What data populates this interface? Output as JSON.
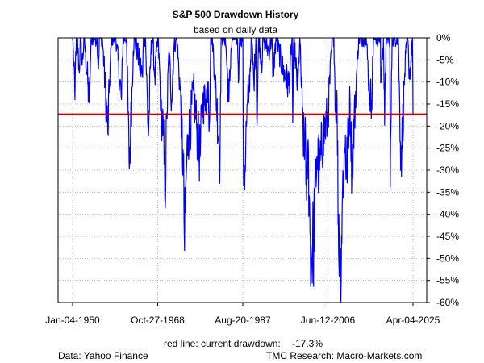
{
  "chart_data": {
    "type": "line",
    "title": "S&P 500 Drawdown History",
    "subtitle": "based on daily data",
    "xlabel": "",
    "ylabel": "",
    "x_ticks": [
      "Jan-04-1950",
      "Oct-27-1968",
      "Aug-20-1987",
      "Jun-12-2006",
      "Apr-04-2025"
    ],
    "y_ticks": [
      "0%",
      "-5%",
      "-10%",
      "-15%",
      "-20%",
      "-25%",
      "-30%",
      "-35%",
      "-40%",
      "-45%",
      "-50%",
      "-55%",
      "-60%"
    ],
    "xlim": [
      "Jan-04-1950",
      "Apr-04-2025"
    ],
    "ylim": [
      -60,
      0
    ],
    "y_scale": "linear",
    "grid": true,
    "series_color": "#0000ff",
    "reference_line": {
      "value": -17.3,
      "color": "#cc0000"
    },
    "series": [
      {
        "values": [
          [
            "1950-01-04",
            0
          ],
          [
            "1950-03-01",
            -3
          ],
          [
            "1950-07-13",
            -14
          ],
          [
            "1950-09-15",
            -3
          ],
          [
            "1951-01-15",
            0
          ],
          [
            "1951-06-29",
            -8
          ],
          [
            "1951-09-14",
            0
          ],
          [
            "1952-02-20",
            -6
          ],
          [
            "1952-08-01",
            0
          ],
          [
            "1953-09-14",
            -14.8
          ],
          [
            "1953-12-31",
            -4
          ],
          [
            "1954-03-01",
            0
          ],
          [
            "1955-06-01",
            0
          ],
          [
            "1955-09-26",
            -7
          ],
          [
            "1955-12-01",
            0
          ],
          [
            "1956-08-02",
            0
          ],
          [
            "1957-10-22",
            -21.6
          ],
          [
            "1958-03-01",
            -10
          ],
          [
            "1958-09-01",
            0
          ],
          [
            "1959-08-03",
            0
          ],
          [
            "1960-10-25",
            -14
          ],
          [
            "1961-03-01",
            0
          ],
          [
            "1961-12-12",
            0
          ],
          [
            "1962-06-26",
            -28
          ],
          [
            "1962-10-23",
            -22
          ],
          [
            "1963-06-01",
            -3
          ],
          [
            "1963-09-03",
            0
          ],
          [
            "1965-06-28",
            -9
          ],
          [
            "1965-09-01",
            0
          ],
          [
            "1966-02-09",
            0
          ],
          [
            "1966-10-07",
            -22.2
          ],
          [
            "1967-05-01",
            -3
          ],
          [
            "1967-09-25",
            0
          ],
          [
            "1968-03-05",
            -9
          ],
          [
            "1968-11-29",
            0
          ],
          [
            "1969-07-29",
            -16
          ],
          [
            "1970-01-30",
            -22
          ],
          [
            "1970-05-26",
            -36.1
          ],
          [
            "1970-11-02",
            -18
          ],
          [
            "1971-04-28",
            -3
          ],
          [
            "1971-11-23",
            -14
          ],
          [
            "1972-06-01",
            -2
          ],
          [
            "1973-01-11",
            0
          ],
          [
            "1973-10-26",
            -12
          ],
          [
            "1974-07-01",
            -30
          ],
          [
            "1974-10-03",
            -48.2
          ],
          [
            "1975-03-01",
            -30
          ],
          [
            "1975-07-15",
            -22
          ],
          [
            "1976-01-01",
            -20
          ],
          [
            "1976-09-21",
            -12
          ],
          [
            "1977-06-01",
            -20
          ],
          [
            "1978-03-06",
            -27
          ],
          [
            "1978-09-12",
            -15
          ],
          [
            "1979-06-01",
            -14
          ],
          [
            "1980-01-01",
            -10
          ],
          [
            "1980-03-27",
            -20
          ],
          [
            "1980-07-17",
            0
          ],
          [
            "1980-11-28",
            0
          ],
          [
            "1981-06-01",
            -8
          ],
          [
            "1982-08-12",
            -27.1
          ],
          [
            "1982-11-03",
            0
          ],
          [
            "1983-10-10",
            0
          ],
          [
            "1984-07-24",
            -14.4
          ],
          [
            "1985-01-01",
            -3
          ],
          [
            "1985-06-01",
            0
          ],
          [
            "1986-06-01",
            0
          ],
          [
            "1986-09-29",
            -9.4
          ],
          [
            "1986-12-01",
            0
          ],
          [
            "1987-08-25",
            0
          ],
          [
            "1987-10-19",
            -33.5
          ],
          [
            "1987-12-04",
            -33.5
          ],
          [
            "1988-06-01",
            -20
          ],
          [
            "1989-01-01",
            -12
          ],
          [
            "1989-07-26",
            0
          ],
          [
            "1990-01-30",
            -10.2
          ],
          [
            "1990-07-16",
            0
          ],
          [
            "1990-10-11",
            -19.9
          ],
          [
            "1991-02-13",
            0
          ],
          [
            "1991-12-01",
            -6
          ],
          [
            "1992-01-15",
            0
          ],
          [
            "1993-06-01",
            -3
          ],
          [
            "1994-02-02",
            0
          ],
          [
            "1994-04-04",
            -8.9
          ],
          [
            "1995-01-01",
            0
          ],
          [
            "1996-07-24",
            -7.6
          ],
          [
            "1997-10-27",
            -10.8
          ],
          [
            "1998-07-17",
            0
          ],
          [
            "1998-08-31",
            -19.3
          ],
          [
            "1998-11-23",
            0
          ],
          [
            "1999-10-15",
            -12
          ],
          [
            "2000-03-24",
            0
          ],
          [
            "2000-10-18",
            -17
          ],
          [
            "2001-04-04",
            -27.5
          ],
          [
            "2001-06-05",
            -18
          ],
          [
            "2001-09-21",
            -36.8
          ],
          [
            "2002-01-04",
            -25
          ],
          [
            "2002-07-23",
            -45
          ],
          [
            "2002-10-09",
            -49.1
          ],
          [
            "2003-03-11",
            -47.5
          ],
          [
            "2003-12-31",
            -27
          ],
          [
            "2004-08-12",
            -30
          ],
          [
            "2005-06-01",
            -22
          ],
          [
            "2006-06-13",
            -18
          ],
          [
            "2007-05-30",
            0
          ],
          [
            "2007-10-09",
            0
          ],
          [
            "2008-03-10",
            -18.6
          ],
          [
            "2008-06-01",
            -12
          ],
          [
            "2008-11-20",
            -51.9
          ],
          [
            "2009-01-06",
            -40
          ],
          [
            "2009-03-09",
            -56.8
          ],
          [
            "2009-09-01",
            -35
          ],
          [
            "2010-04-23",
            -22
          ],
          [
            "2010-07-02",
            -32
          ],
          [
            "2011-04-29",
            -14
          ],
          [
            "2011-10-03",
            -30
          ],
          [
            "2012-09-14",
            -10
          ],
          [
            "2013-03-28",
            0
          ],
          [
            "2014-12-01",
            0
          ],
          [
            "2015-08-25",
            -12.4
          ],
          [
            "2016-02-11",
            -14.2
          ],
          [
            "2016-07-11",
            0
          ],
          [
            "2018-01-26",
            0
          ],
          [
            "2018-02-08",
            -10.2
          ],
          [
            "2018-09-20",
            0
          ],
          [
            "2018-12-24",
            -19.8
          ],
          [
            "2019-04-23",
            0
          ],
          [
            "2020-02-19",
            0
          ],
          [
            "2020-03-23",
            -33.9
          ],
          [
            "2020-08-18",
            0
          ],
          [
            "2021-09-01",
            0
          ],
          [
            "2022-01-03",
            0
          ],
          [
            "2022-06-16",
            -23.5
          ],
          [
            "2022-10-12",
            -25.4
          ],
          [
            "2023-06-01",
            -8
          ],
          [
            "2024-01-19",
            0
          ],
          [
            "2024-04-19",
            -5.5
          ],
          [
            "2024-08-05",
            -8.5
          ],
          [
            "2025-02-19",
            0
          ],
          [
            "2025-04-04",
            -17.3
          ]
        ]
      }
    ]
  },
  "caption": {
    "red_line_label": "red line: current drawdown:",
    "red_line_value": "-17.3%",
    "source": "Data: Yahoo Finance",
    "credit": "TMC Research: Macro-Markets.com"
  }
}
